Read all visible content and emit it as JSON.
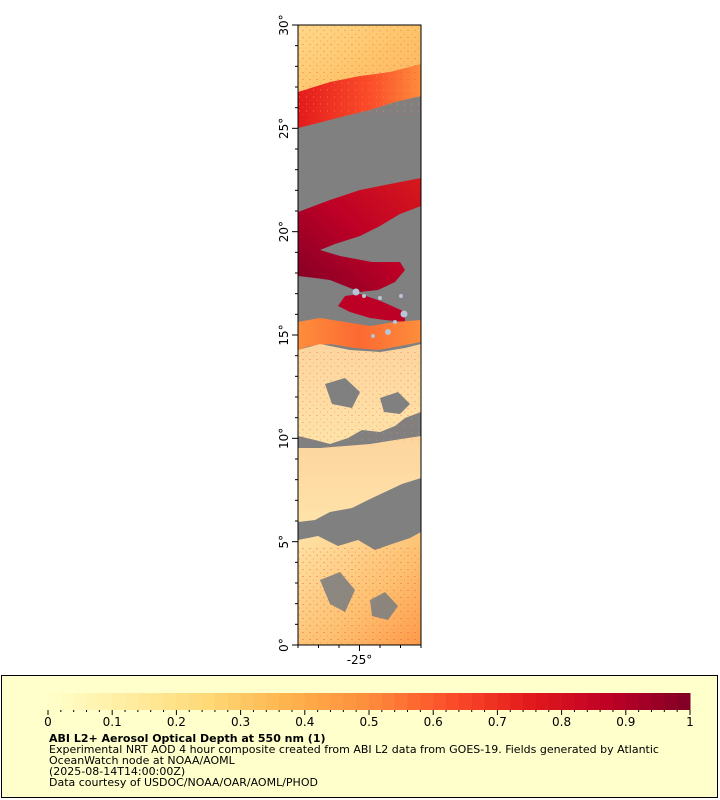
{
  "map": {
    "lat_ticks": [
      {
        "value": 0,
        "label": "0°"
      },
      {
        "value": 5,
        "label": "5°"
      },
      {
        "value": 10,
        "label": "10°"
      },
      {
        "value": 15,
        "label": "15°"
      },
      {
        "value": 20,
        "label": "20°"
      },
      {
        "value": 25,
        "label": "25°"
      },
      {
        "value": 30,
        "label": "30°"
      }
    ],
    "lon_ticks": [
      {
        "value": -25,
        "label": "-25°"
      }
    ],
    "lat_range": [
      0,
      30
    ],
    "lon_range": [
      -28,
      -22
    ],
    "colors": {
      "no_data": "#808080",
      "land": "#b8c4d8"
    }
  },
  "legend": {
    "title": "ABI L2+ Aerosol Optical Depth at 550 nm (1)",
    "description": "Experimental NRT AOD 4 hour composite created from ABI L2 data from GOES-19. Fields generated by Atlantic OceanWatch node at NOAA/AOML",
    "timestamp": "(2025-08-14T14:00:00Z)",
    "credit": "Data courtesy of USDOC/NOAA/OAR/AOML/PHOD",
    "range": [
      0,
      1
    ],
    "ticks": [
      {
        "value": 0,
        "label": "0"
      },
      {
        "value": 0.1,
        "label": "0.1"
      },
      {
        "value": 0.2,
        "label": "0.2"
      },
      {
        "value": 0.3,
        "label": "0.3"
      },
      {
        "value": 0.4,
        "label": "0.4"
      },
      {
        "value": 0.5,
        "label": "0.5"
      },
      {
        "value": 0.6,
        "label": "0.6"
      },
      {
        "value": 0.7,
        "label": "0.7"
      },
      {
        "value": 0.8,
        "label": "0.8"
      },
      {
        "value": 0.9,
        "label": "0.9"
      },
      {
        "value": 1,
        "label": "1"
      }
    ],
    "colorscale": [
      "#ffffcc",
      "#ffeda0",
      "#fed976",
      "#feb24c",
      "#fd8d3c",
      "#fc4e2a",
      "#e31a1c",
      "#bd0026",
      "#800026"
    ]
  }
}
